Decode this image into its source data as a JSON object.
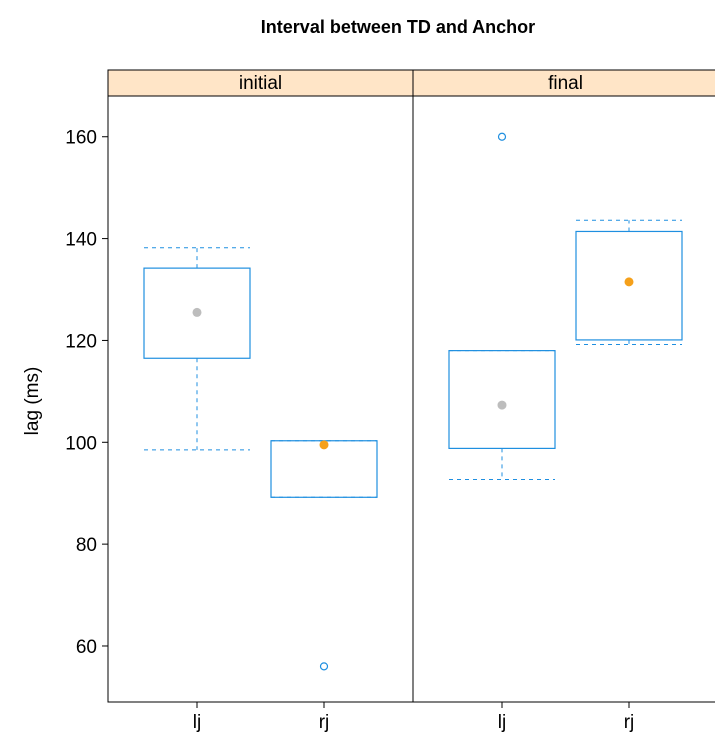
{
  "chart_data": {
    "type": "boxplot",
    "title": "Interval between TD and Anchor",
    "ylabel": "lag (ms)",
    "xlabel": "",
    "ylim": [
      49,
      168
    ],
    "yticks": [
      60,
      80,
      100,
      120,
      140,
      160
    ],
    "categories": [
      "lj",
      "rj"
    ],
    "panels": [
      {
        "label": "initial",
        "boxes": [
          {
            "category": "lj",
            "whisker_low": 98.5,
            "q1": 116.5,
            "median": 125.5,
            "q3": 134.2,
            "whisker_high": 138.2,
            "outliers": [],
            "median_color": "#bdbdbd"
          },
          {
            "category": "rj",
            "whisker_low": 89.2,
            "q1": 89.2,
            "median": 99.5,
            "q3": 100.3,
            "whisker_high": 100.3,
            "outliers": [
              56.0
            ],
            "median_color": "#f5a01a"
          }
        ]
      },
      {
        "label": "final",
        "boxes": [
          {
            "category": "lj",
            "whisker_low": 92.7,
            "q1": 98.8,
            "median": 107.3,
            "q3": 118.0,
            "whisker_high": 118.0,
            "outliers": [
              160.0
            ],
            "median_color": "#bdbdbd"
          },
          {
            "category": "rj",
            "whisker_low": 119.2,
            "q1": 120.1,
            "median": 131.5,
            "q3": 141.4,
            "whisker_high": 143.6,
            "outliers": [],
            "median_color": "#f5a01a"
          }
        ]
      }
    ],
    "colors": {
      "box": "#1f8fe0",
      "strip": "#ffe5c7",
      "frame": "#000000"
    }
  }
}
